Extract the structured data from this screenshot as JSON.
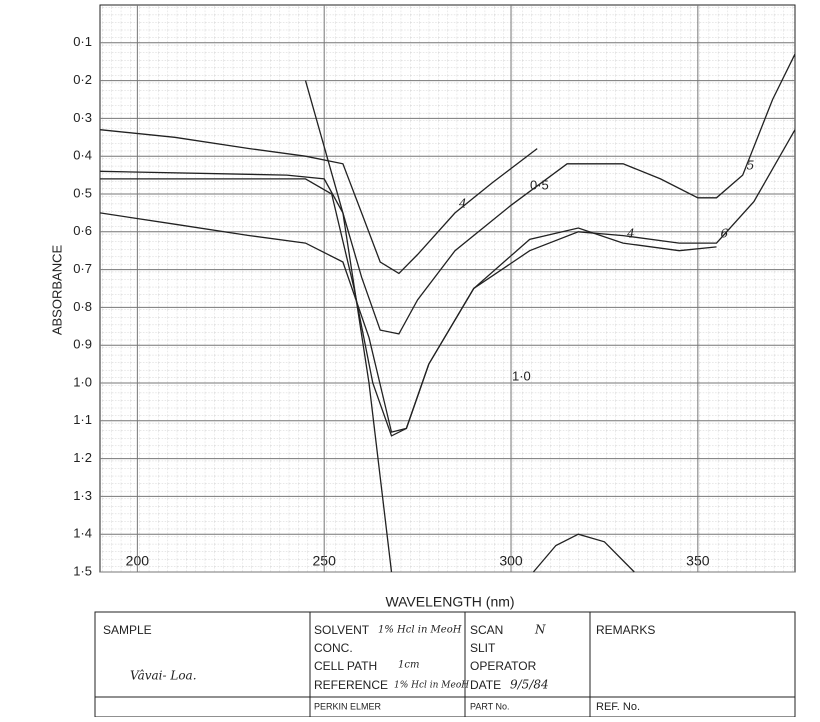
{
  "chart_data": {
    "type": "line",
    "y_label": "ABSORBANCE",
    "x_label": "WAVELENGTH (nm)",
    "xlim": [
      190,
      376
    ],
    "ylim": [
      0,
      1.5
    ],
    "y_inverted": true,
    "grid": true,
    "xticks": [
      200,
      250,
      300,
      350
    ],
    "yticks": [
      {
        "value": 0.1,
        "label": "0·1"
      },
      {
        "value": 0.2,
        "label": "0·2"
      },
      {
        "value": 0.3,
        "label": "0·3"
      },
      {
        "value": 0.4,
        "label": "0·4"
      },
      {
        "value": 0.5,
        "label": "0·5"
      },
      {
        "value": 0.6,
        "label": "0·6"
      },
      {
        "value": 0.7,
        "label": "0·7"
      },
      {
        "value": 0.8,
        "label": "0·8"
      },
      {
        "value": 0.9,
        "label": "0·9"
      },
      {
        "value": 1.0,
        "label": "1·0"
      },
      {
        "value": 1.1,
        "label": "1·1"
      },
      {
        "value": 1.2,
        "label": "1·2"
      },
      {
        "value": 1.3,
        "label": "1·3"
      },
      {
        "value": 1.4,
        "label": "1·4"
      },
      {
        "value": 1.5,
        "label": "1·5"
      }
    ],
    "series": [
      {
        "name": "4",
        "color": "#222",
        "x": [
          190,
          210,
          230,
          245,
          255,
          260,
          265,
          270,
          275,
          285,
          295,
          307
        ],
        "values": [
          0.33,
          0.35,
          0.38,
          0.4,
          0.42,
          0.55,
          0.68,
          0.71,
          0.66,
          0.55,
          0.47,
          0.38
        ]
      },
      {
        "name": "5",
        "color": "#222",
        "x": [
          190,
          240,
          250,
          255,
          260,
          265,
          270,
          275,
          285,
          300,
          315,
          330,
          340,
          350,
          355,
          362,
          370,
          376
        ],
        "values": [
          0.44,
          0.45,
          0.46,
          0.55,
          0.72,
          0.86,
          0.87,
          0.78,
          0.65,
          0.53,
          0.42,
          0.42,
          0.46,
          0.51,
          0.51,
          0.45,
          0.25,
          0.13
        ]
      },
      {
        "name": "6",
        "color": "#222",
        "x": [
          190,
          245,
          252,
          258,
          263,
          268,
          272,
          278,
          290,
          305,
          318,
          330,
          345,
          355,
          365,
          376
        ],
        "values": [
          0.46,
          0.46,
          0.5,
          0.75,
          1.0,
          1.14,
          1.12,
          0.95,
          0.75,
          0.65,
          0.6,
          0.61,
          0.63,
          0.63,
          0.52,
          0.33
        ]
      },
      {
        "name": "4",
        "color": "#222",
        "x": [
          190,
          210,
          230,
          245,
          255,
          262,
          268,
          272,
          278,
          290,
          305,
          318,
          330,
          345,
          355
        ],
        "values": [
          0.55,
          0.58,
          0.61,
          0.63,
          0.68,
          0.88,
          1.13,
          1.12,
          0.95,
          0.75,
          0.62,
          0.59,
          0.63,
          0.65,
          0.64
        ]
      },
      {
        "color": "#222",
        "x": [
          245,
          255,
          262,
          268
        ],
        "values": [
          0.2,
          0.55,
          1.0,
          1.5
        ]
      },
      {
        "color": "#222",
        "x": [
          306,
          312,
          318,
          325,
          333
        ],
        "values": [
          1.5,
          1.43,
          1.4,
          1.42,
          1.5
        ]
      }
    ],
    "annotations": [
      "0·5",
      "1·0"
    ]
  },
  "form": {
    "sample_label": "SAMPLE",
    "sample": "Vâvai- Loa.",
    "solvent_label": "SOLVENT",
    "solvent": "1% Hcl in MeoH",
    "conc_label": "CONC.",
    "cell_path_label": "CELL PATH",
    "cell_path": "1cm",
    "reference_label": "REFERENCE",
    "reference": "1% Hcl in MeoH",
    "scan_label": "SCAN",
    "scan": "N",
    "slit_label": "SLIT",
    "operator_label": "OPERATOR",
    "date_label": "DATE",
    "date": "9/5/84",
    "remarks_label": "REMARKS",
    "maker": "PERKIN ELMER",
    "part_label": "PART No.",
    "ref_label": "REF. No."
  }
}
